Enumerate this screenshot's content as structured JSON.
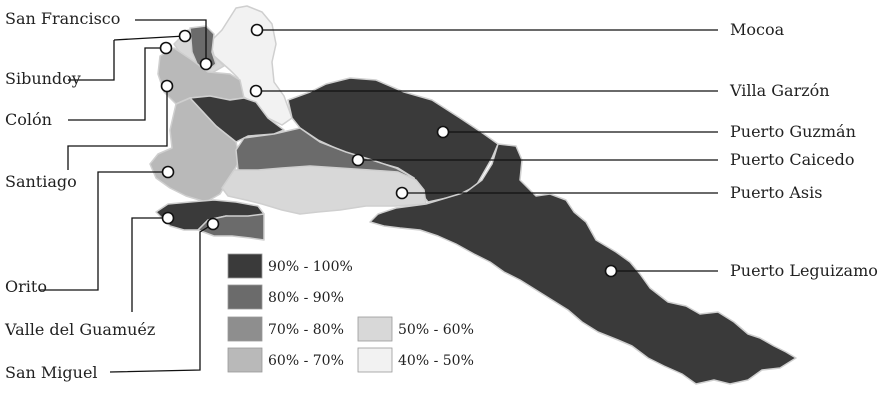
{
  "colors": {
    "c90_100": "#3a3a3a",
    "c80_90": "#6b6b6b",
    "c70_80": "#8e8e8e",
    "c60_70": "#b9b9b9",
    "c50_60": "#d8d8d8",
    "c40_50": "#f2f2f2",
    "border": "#cfcfcf"
  },
  "municipalities": [
    {
      "name": "San Francisco",
      "class": "80% - 90%"
    },
    {
      "name": "Mocoa",
      "class": "40% - 50%"
    },
    {
      "name": "Sibundoy",
      "class": "50% - 60%"
    },
    {
      "name": "Colón",
      "class": "60% - 70%"
    },
    {
      "name": "Villa Garzón",
      "class": "90% - 100%"
    },
    {
      "name": "Santiago",
      "class": "60% - 70%"
    },
    {
      "name": "Puerto Guzmán",
      "class": "90% - 100%"
    },
    {
      "name": "Puerto Caicedo",
      "class": "80% - 90%"
    },
    {
      "name": "Puerto Asis",
      "class": "50% - 60%"
    },
    {
      "name": "Orito",
      "class": "90% - 100%"
    },
    {
      "name": "Puerto Leguizamo",
      "class": "90% - 100%"
    },
    {
      "name": "Valle del Guamuéz",
      "class": "90% - 100%"
    },
    {
      "name": "San Miguel",
      "class": "80% - 90%"
    }
  ],
  "legend": [
    {
      "label": "90% - 100%",
      "color": "#3a3a3a"
    },
    {
      "label": "80% - 90%",
      "color": "#6b6b6b"
    },
    {
      "label": "70% - 80%",
      "color": "#8e8e8e"
    },
    {
      "label": "60% - 70%",
      "color": "#b9b9b9"
    },
    {
      "label": "50% - 60%",
      "color": "#d8d8d8"
    },
    {
      "label": "40% - 50%",
      "color": "#f2f2f2"
    }
  ]
}
